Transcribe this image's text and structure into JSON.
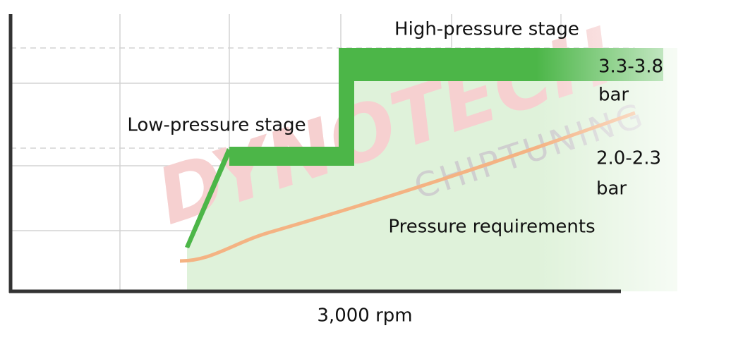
{
  "labels": {
    "high_stage": "High-pressure stage",
    "high_range": "3.3-3.8",
    "high_unit": "bar",
    "low_stage": "Low-pressure stage",
    "low_range": "2.0-2.3",
    "low_unit": "bar",
    "requirements": "Pressure requirements",
    "x_marker": "3,000 rpm"
  },
  "watermark": {
    "brand": "DYNOTECH",
    "tagline": "CHIPTUNING"
  }
}
